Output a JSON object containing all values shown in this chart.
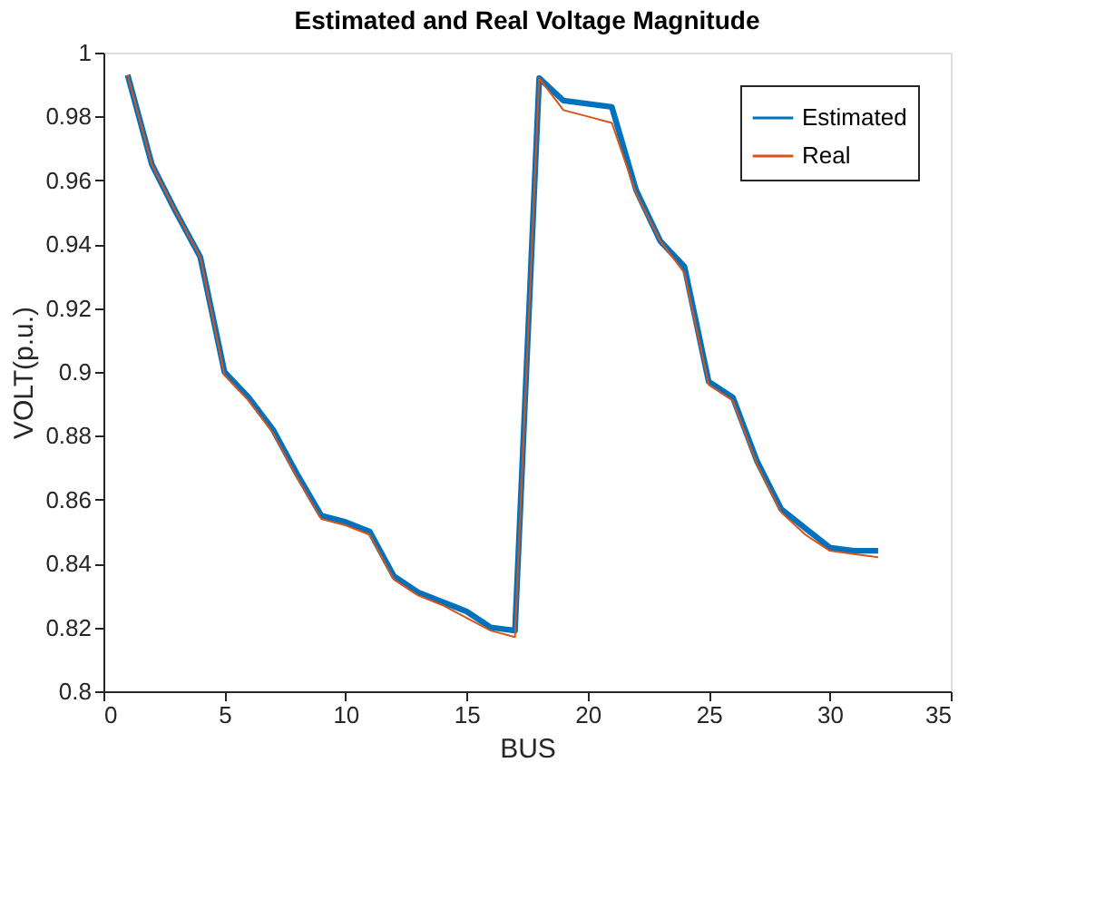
{
  "chart_data": {
    "type": "line",
    "title": "Estimated and Real Voltage Magnitude",
    "xlabel": "BUS",
    "ylabel": "VOLT(p.u.)",
    "x": [
      1,
      2,
      3,
      4,
      5,
      6,
      7,
      8,
      9,
      10,
      11,
      12,
      13,
      14,
      15,
      16,
      17,
      18,
      19,
      20,
      21,
      22,
      23,
      24,
      25,
      26,
      27,
      28,
      29,
      30,
      31,
      32
    ],
    "series": [
      {
        "name": "Estimated",
        "color": "#0072bd",
        "values": [
          0.993,
          0.965,
          0.95,
          0.936,
          0.9,
          0.892,
          0.882,
          0.868,
          0.855,
          0.853,
          0.85,
          0.836,
          0.831,
          0.828,
          0.825,
          0.82,
          0.819,
          0.992,
          0.985,
          0.984,
          0.983,
          0.957,
          0.941,
          0.933,
          0.897,
          0.892,
          0.872,
          0.857,
          0.851,
          0.845,
          0.844,
          0.844
        ]
      },
      {
        "name": "Real",
        "color": "#d95319",
        "values": [
          0.993,
          0.965,
          0.95,
          0.936,
          0.899,
          0.891,
          0.881,
          0.867,
          0.854,
          0.852,
          0.849,
          0.835,
          0.83,
          0.827,
          0.823,
          0.819,
          0.817,
          0.992,
          0.982,
          0.98,
          0.978,
          0.956,
          0.941,
          0.931,
          0.896,
          0.891,
          0.871,
          0.856,
          0.849,
          0.844,
          0.843,
          0.842
        ]
      }
    ],
    "xlim": [
      0,
      35
    ],
    "xticks": [
      0,
      5,
      10,
      15,
      20,
      25,
      30,
      35
    ],
    "ylim": [
      0.8,
      1
    ],
    "yticks": [
      0.8,
      0.82,
      0.84,
      0.86,
      0.88,
      0.9,
      0.92,
      0.94,
      0.96,
      0.98,
      1
    ],
    "grid": false,
    "legend": "top right",
    "marker": "none",
    "line_style": "solid"
  }
}
